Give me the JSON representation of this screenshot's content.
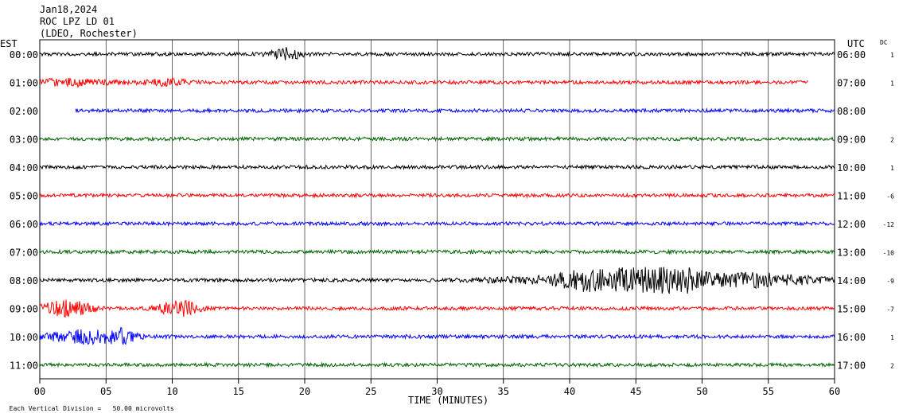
{
  "header": {
    "date": "Jan18,2024",
    "station": "ROC LPZ LD 01",
    "network": "(LDEO, Rochester)"
  },
  "left_label": "EST",
  "right_label": "UTC",
  "dc_label": "DC",
  "footer": {
    "scale_note": "Each Vertical Division =   50.00 microvolts"
  },
  "chart_data": {
    "type": "line",
    "title": "",
    "xlabel": "TIME (MINUTES)",
    "xlim": [
      0,
      60
    ],
    "x_ticks": [
      "00",
      "05",
      "10",
      "15",
      "20",
      "25",
      "30",
      "35",
      "40",
      "45",
      "50",
      "55",
      "60"
    ],
    "grid": true,
    "rows": [
      {
        "est": "00:00",
        "utc": "06:00",
        "dc": "1",
        "color": "#000000",
        "start_min": 0,
        "end_min": 60
      },
      {
        "est": "01:00",
        "utc": "07:00",
        "dc": "1",
        "color": "#ff0000",
        "start_min": 0,
        "end_min": 58
      },
      {
        "est": "02:00",
        "utc": "08:00",
        "dc": "",
        "color": "#0000ff",
        "start_min": 2.7,
        "end_min": 60
      },
      {
        "est": "03:00",
        "utc": "09:00",
        "dc": "2",
        "color": "#006400",
        "start_min": 0,
        "end_min": 60
      },
      {
        "est": "04:00",
        "utc": "10:00",
        "dc": "1",
        "color": "#000000",
        "start_min": 0,
        "end_min": 60
      },
      {
        "est": "05:00",
        "utc": "11:00",
        "dc": "-6",
        "color": "#ff0000",
        "start_min": 0,
        "end_min": 60
      },
      {
        "est": "06:00",
        "utc": "12:00",
        "dc": "-12",
        "color": "#0000ff",
        "start_min": 0,
        "end_min": 60
      },
      {
        "est": "07:00",
        "utc": "13:00",
        "dc": "-10",
        "color": "#006400",
        "start_min": 0,
        "end_min": 60
      },
      {
        "est": "08:00",
        "utc": "14:00",
        "dc": "-9",
        "color": "#000000",
        "start_min": 0,
        "end_min": 60
      },
      {
        "est": "09:00",
        "utc": "15:00",
        "dc": "-7",
        "color": "#ff0000",
        "start_min": 0,
        "end_min": 60
      },
      {
        "est": "10:00",
        "utc": "16:00",
        "dc": "1",
        "color": "#0000ff",
        "start_min": 0,
        "end_min": 60
      },
      {
        "est": "11:00",
        "utc": "17:00",
        "dc": "2",
        "color": "#006400",
        "start_min": 0,
        "end_min": 60
      }
    ]
  }
}
